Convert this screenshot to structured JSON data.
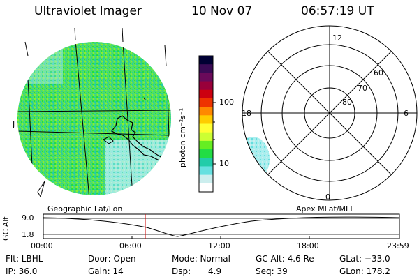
{
  "header": {
    "instrument": "Ultraviolet Imager",
    "date": "10 Nov 07",
    "time": "06:57:19 UT"
  },
  "colorbar": {
    "unit": "photon cm⁻²s⁻¹",
    "ticks": [
      "100",
      "10"
    ],
    "colors": [
      "#000033",
      "#3a0a55",
      "#6a0a5a",
      "#99003a",
      "#cc0010",
      "#ee3300",
      "#ff8800",
      "#ffcc00",
      "#ffff33",
      "#ccff33",
      "#66ee22",
      "#22dd44",
      "#22ccaa",
      "#66e0e0",
      "#cceeee",
      "#ffffff"
    ]
  },
  "geo_panel": {
    "label": "Geographic Lat/Lon",
    "side_marker": "J"
  },
  "polar_panel": {
    "label": "Apex MLat/MLT",
    "mlt_top": "12",
    "mlt_left": "18",
    "mlt_right": "6",
    "mlt_bottom": "0",
    "mlat_labels": [
      "60",
      "70",
      "80"
    ]
  },
  "orbit_plot": {
    "ylabel": "GC Alt",
    "y_ticks": [
      "9.0",
      "1.8"
    ],
    "x_ticks": [
      "00:00",
      "06:00",
      "12:00",
      "18:00",
      "23:59"
    ],
    "current_time_color": "#cc0000"
  },
  "status": {
    "flt": "Flt: LBHL",
    "ip": "IP: 36.0",
    "door": "Door: Open",
    "gain": "Gain: 14",
    "mode": "Mode: Normal",
    "dsp_label": "Dsp:",
    "dsp_value": "4.9",
    "gc_alt": "GC Alt: 4.6 Re",
    "seq": "Seq: 39",
    "glat": "GLat: −33.0",
    "glon": "GLon: 178.2"
  }
}
